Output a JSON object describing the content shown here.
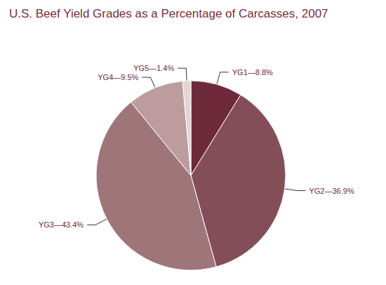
{
  "chart_data": {
    "type": "pie",
    "title": "U.S. Beef Yield Grades as a Percentage of Carcasses, 2007",
    "categories": [
      "YG1",
      "YG2",
      "YG3",
      "YG4",
      "YG5"
    ],
    "values": [
      8.8,
      36.9,
      43.4,
      9.5,
      1.4
    ],
    "value_labels": [
      "YG1—8.8%",
      "YG2—36.9%",
      "YG3—43.4%",
      "YG4—9.5%",
      "YG5—1.4%"
    ],
    "colors": [
      "#6e2a3a",
      "#844e58",
      "#9e7679",
      "#bc9c9e",
      "#e4d4d4"
    ],
    "data_labels": true
  }
}
